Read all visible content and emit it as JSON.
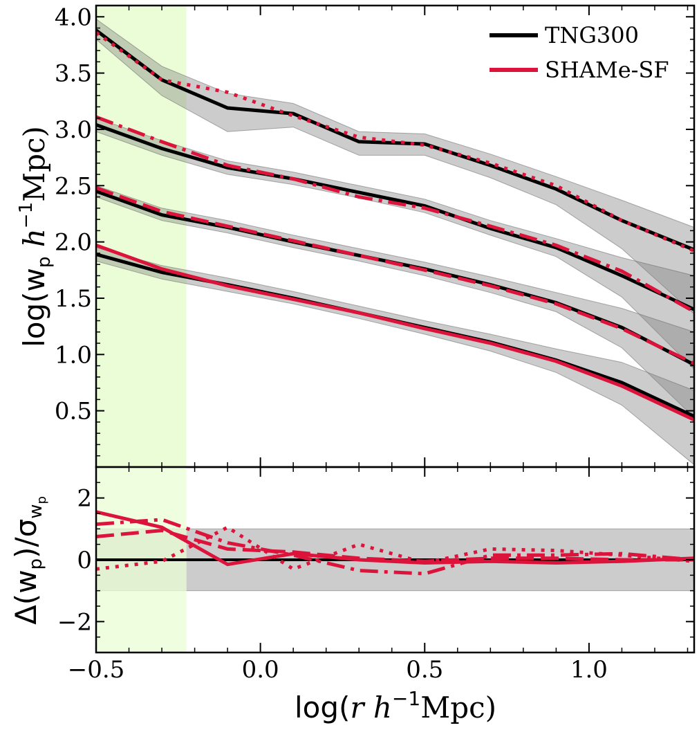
{
  "chart_data": [
    {
      "type": "line",
      "panel": "top",
      "ylabel_parts": [
        "log(w",
        "p",
        " ",
        "h",
        "−1",
        "Mpc)"
      ],
      "xlim": [
        -0.5,
        1.32
      ],
      "ylim": [
        0.0,
        4.1
      ],
      "yticks": [
        0.5,
        1.0,
        1.5,
        2.0,
        2.5,
        3.0,
        3.5,
        4.0
      ],
      "ytick_labels": [
        "0.5",
        "1.0",
        "1.5",
        "2.0",
        "2.5",
        "3.0",
        "3.5",
        "4.0"
      ],
      "shaded_region_x": [
        -0.5,
        -0.225
      ],
      "shaded_region_color": "#ebfdd6",
      "legend": {
        "placement": "top-right",
        "entries": [
          {
            "label": "TNG300",
            "color": "#000000"
          },
          {
            "label": "SHAMe-SF",
            "color": "#dc143c"
          }
        ]
      },
      "x": [
        -0.5,
        -0.3,
        -0.1,
        0.1,
        0.3,
        0.5,
        0.7,
        0.9,
        1.1,
        1.32
      ],
      "series": [
        {
          "group": 1,
          "tng300": [
            3.88,
            3.44,
            3.19,
            3.14,
            2.89,
            2.87,
            2.68,
            2.47,
            2.19,
            1.93
          ],
          "band_low": [
            3.8,
            3.3,
            2.98,
            3.02,
            2.77,
            2.77,
            2.57,
            2.33,
            1.94,
            1.36
          ],
          "band_high": [
            3.98,
            3.56,
            3.32,
            3.23,
            2.98,
            2.96,
            2.78,
            2.58,
            2.37,
            2.13
          ],
          "shame_sf": [
            3.86,
            3.44,
            3.33,
            3.12,
            2.93,
            2.86,
            2.7,
            2.5,
            2.19,
            1.92
          ],
          "shame_style": "dotted"
        },
        {
          "group": 2,
          "tng300": [
            3.04,
            2.83,
            2.66,
            2.56,
            2.44,
            2.32,
            2.12,
            1.95,
            1.7,
            1.4
          ],
          "band_low": [
            2.98,
            2.77,
            2.6,
            2.51,
            2.39,
            2.26,
            2.06,
            1.87,
            1.51,
            0.87
          ],
          "band_high": [
            3.1,
            2.9,
            2.72,
            2.62,
            2.5,
            2.38,
            2.19,
            2.03,
            1.86,
            1.7
          ],
          "shame_sf": [
            3.11,
            2.89,
            2.68,
            2.56,
            2.4,
            2.3,
            2.14,
            1.97,
            1.74,
            1.38
          ],
          "shame_style": "dashdot"
        },
        {
          "group": 3,
          "tng300": [
            2.45,
            2.24,
            2.13,
            2.0,
            1.88,
            1.76,
            1.62,
            1.46,
            1.24,
            0.91
          ],
          "band_low": [
            2.4,
            2.19,
            2.08,
            1.95,
            1.83,
            1.7,
            1.55,
            1.38,
            1.06,
            0.44
          ],
          "band_high": [
            2.5,
            2.3,
            2.19,
            2.06,
            1.94,
            1.82,
            1.69,
            1.55,
            1.41,
            1.2
          ],
          "shame_sf": [
            2.48,
            2.27,
            2.14,
            2.01,
            1.88,
            1.75,
            1.61,
            1.45,
            1.23,
            0.92
          ],
          "shame_style": "dashed"
        },
        {
          "group": 4,
          "tng300": [
            1.89,
            1.73,
            1.62,
            1.5,
            1.37,
            1.24,
            1.11,
            0.95,
            0.75,
            0.45
          ],
          "band_low": [
            1.83,
            1.67,
            1.56,
            1.45,
            1.32,
            1.18,
            1.03,
            0.84,
            0.55,
            0.02
          ],
          "band_high": [
            1.95,
            1.79,
            1.68,
            1.56,
            1.43,
            1.3,
            1.18,
            1.05,
            0.93,
            0.68
          ],
          "shame_sf": [
            1.97,
            1.76,
            1.61,
            1.49,
            1.37,
            1.23,
            1.1,
            0.94,
            0.72,
            0.42
          ],
          "shame_style": "solid"
        }
      ]
    },
    {
      "type": "line",
      "panel": "bottom",
      "ylabel_parts": [
        "Δ(w",
        "p",
        ")/σ",
        "w",
        "p"
      ],
      "xlabel_parts": [
        "log(",
        "r",
        " ",
        "h",
        "−1",
        "Mpc)"
      ],
      "xlim": [
        -0.5,
        1.32
      ],
      "ylim": [
        -3.0,
        3.0
      ],
      "yticks": [
        -2,
        0,
        2
      ],
      "ytick_labels": [
        "−2",
        "0",
        "2"
      ],
      "xticks": [
        -0.5,
        0.0,
        0.5,
        1.0
      ],
      "xtick_labels": [
        "−0.5",
        "0.0",
        "0.5",
        "1.0"
      ],
      "band": [
        -1.0,
        1.0
      ],
      "zero_line": 0,
      "x": [
        -0.5,
        -0.3,
        -0.1,
        0.1,
        0.3,
        0.5,
        0.7,
        0.9,
        1.1,
        1.32
      ],
      "series": [
        {
          "style": "dotted",
          "values": [
            -0.3,
            -0.05,
            1.05,
            -0.3,
            0.5,
            -0.1,
            0.35,
            0.3,
            0.15,
            -0.05
          ]
        },
        {
          "style": "dashdot",
          "values": [
            1.15,
            1.3,
            0.55,
            0.15,
            -0.35,
            -0.45,
            0.15,
            0.15,
            0.2,
            0.0
          ]
        },
        {
          "style": "dashed",
          "values": [
            0.75,
            0.95,
            0.35,
            0.25,
            0.05,
            -0.05,
            0.05,
            0.05,
            0.0,
            0.0
          ]
        },
        {
          "style": "solid",
          "values": [
            1.55,
            1.05,
            -0.15,
            0.2,
            0.0,
            -0.1,
            -0.05,
            -0.1,
            -0.05,
            0.05
          ]
        }
      ]
    }
  ]
}
